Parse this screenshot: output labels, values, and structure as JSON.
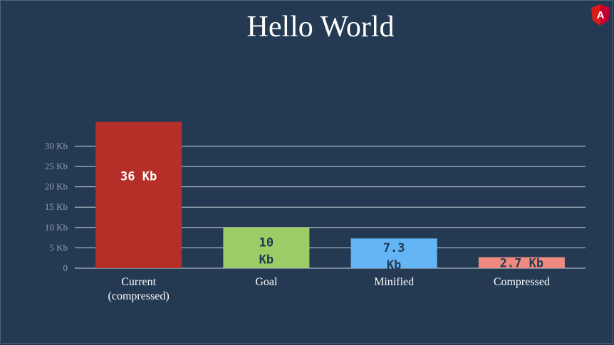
{
  "slide": {
    "title": "Hello World",
    "logo_icon": "angular-logo-icon",
    "logo_letter": "A",
    "colors": {
      "background": "#243a53",
      "grid": "#c9d1dc",
      "tick": "#8f9db0",
      "logo": "#dd1b16"
    }
  },
  "chart_data": {
    "type": "bar",
    "title": "Hello World",
    "xlabel": "",
    "ylabel": "",
    "ylim": [
      0,
      35
    ],
    "yticks": [
      0,
      5,
      10,
      15,
      20,
      25,
      30
    ],
    "ytick_labels": [
      "0",
      "5 Kb",
      "10 Kb",
      "15 Kb",
      "20 Kb",
      "25 Kb",
      "30 Kb"
    ],
    "grid": true,
    "categories": [
      "Current\n(compressed)",
      "Goal",
      "Minified",
      "Compressed"
    ],
    "values": [
      36,
      10,
      7.3,
      2.7
    ],
    "value_labels": [
      "36 Kb",
      "10\nKb",
      "7.3\nKb",
      "2.7 Kb"
    ],
    "colors": [
      "#b52e27",
      "#9ccc65",
      "#64b5f6",
      "#ef8a80"
    ],
    "label_colors": [
      "#ffffff",
      "#243a53",
      "#243a53",
      "#243a53"
    ]
  }
}
